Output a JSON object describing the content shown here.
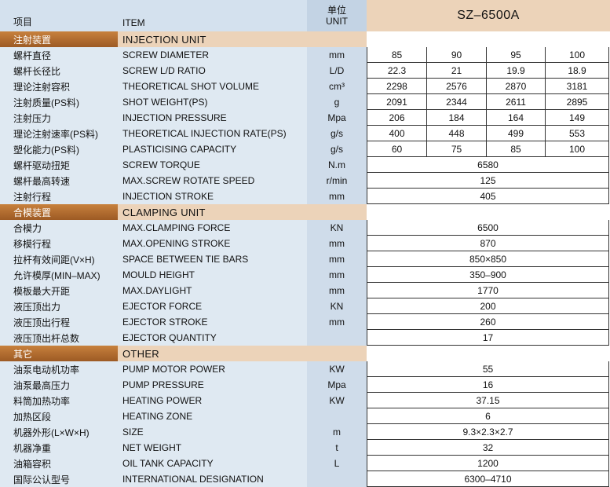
{
  "header": {
    "cn": "项目",
    "en": "ITEM",
    "unit_cn": "单位",
    "unit_en": "UNIT",
    "model": "SZ–6500A"
  },
  "sections": [
    {
      "title_cn": "注射装置",
      "title_en": "INJECTION UNIT",
      "rows": [
        {
          "cn": "螺杆直径",
          "en": "SCREW DIAMETER",
          "unit": "mm",
          "values": [
            "85",
            "90",
            "95",
            "100"
          ]
        },
        {
          "cn": "螺杆长径比",
          "en": "SCREW L/D RATIO",
          "unit": "L/D",
          "values": [
            "22.3",
            "21",
            "19.9",
            "18.9"
          ]
        },
        {
          "cn": "理论注射容积",
          "en": "THEORETICAL SHOT VOLUME",
          "unit": "cm³",
          "values": [
            "2298",
            "2576",
            "2870",
            "3181"
          ]
        },
        {
          "cn": "注射质量(PS料)",
          "en": "SHOT WEIGHT(PS)",
          "unit": "g",
          "values": [
            "2091",
            "2344",
            "2611",
            "2895"
          ]
        },
        {
          "cn": "注射压力",
          "en": " INJECTION PRESSURE",
          "unit": "Mpa",
          "values": [
            "206",
            "184",
            "164",
            "149"
          ]
        },
        {
          "cn": "理论注射速率(PS料)",
          "en": "THEORETICAL INJECTION RATE(PS)",
          "unit": "g/s",
          "values": [
            "400",
            "448",
            "499",
            "553"
          ]
        },
        {
          "cn": "塑化能力(PS料)",
          "en": "PLASTICISING CAPACITY",
          "unit": "g/s",
          "values": [
            "60",
            "75",
            "85",
            "100"
          ]
        },
        {
          "cn": "螺杆驱动扭矩",
          "en": "SCREW TORQUE",
          "unit": "N.m",
          "values": [
            "6580"
          ]
        },
        {
          "cn": "螺杆最高转速",
          "en": " MAX.SCREW ROTATE SPEED",
          "unit": "r/min",
          "values": [
            "125"
          ]
        },
        {
          "cn": "注射行程",
          "en": "INJECTION STROKE",
          "unit": "mm",
          "values": [
            "405"
          ]
        }
      ]
    },
    {
      "title_cn": "合模装置",
      "title_en": "CLAMPING UNIT",
      "rows": [
        {
          "cn": "合模力",
          "en": "MAX.CLAMPING FORCE",
          "unit": "KN",
          "values": [
            "6500"
          ]
        },
        {
          "cn": "移模行程",
          "en": "MAX.OPENING STROKE",
          "unit": "mm",
          "values": [
            "870"
          ]
        },
        {
          "cn": "拉杆有效间距(V×H)",
          "en": "SPACE BETWEEN TIE BARS",
          "unit": "mm",
          "values": [
            "850×850"
          ]
        },
        {
          "cn": "允许模厚(MIN–MAX)",
          "en": "MOULD HEIGHT",
          "unit": "mm",
          "values": [
            "350–900"
          ]
        },
        {
          "cn": "模板最大开距",
          "en": "MAX.DAYLIGHT",
          "unit": "mm",
          "values": [
            "1770"
          ]
        },
        {
          "cn": "液压顶出力",
          "en": "EJECTOR FORCE",
          "unit": "KN",
          "values": [
            "200"
          ]
        },
        {
          "cn": "液压顶出行程",
          "en": "EJECTOR STROKE",
          "unit": "mm",
          "values": [
            "260"
          ]
        },
        {
          "cn": "液压顶出杆总数",
          "en": "EJECTOR QUANTITY",
          "unit": "",
          "values": [
            "17"
          ]
        }
      ]
    },
    {
      "title_cn": "其它",
      "title_en": "OTHER",
      "rows": [
        {
          "cn": "油泵电动机功率",
          "en": "PUMP MOTOR POWER",
          "unit": "KW",
          "values": [
            "55"
          ]
        },
        {
          "cn": "油泵最高压力",
          "en": "PUMP PRESSURE",
          "unit": "Mpa",
          "values": [
            "16"
          ]
        },
        {
          "cn": "料筒加热功率",
          "en": "HEATING POWER",
          "unit": "KW",
          "values": [
            "37.15"
          ]
        },
        {
          "cn": "加热区段",
          "en": "HEATING ZONE",
          "unit": "",
          "values": [
            "6"
          ]
        },
        {
          "cn": "机器外形(L×W×H)",
          "en": "SIZE",
          "unit": "m",
          "values": [
            "9.3×2.3×2.7"
          ]
        },
        {
          "cn": "机器净重",
          "en": "NET WEIGHT",
          "unit": "t",
          "values": [
            "32"
          ]
        },
        {
          "cn": "油箱容积",
          "en": "OIL TANK CAPACITY",
          "unit": "L",
          "values": [
            "1200"
          ]
        },
        {
          "cn": "国际公认型号",
          "en": "INTERNATIONAL DESIGNATION",
          "unit": "",
          "values": [
            "6300–4710"
          ]
        }
      ]
    }
  ]
}
